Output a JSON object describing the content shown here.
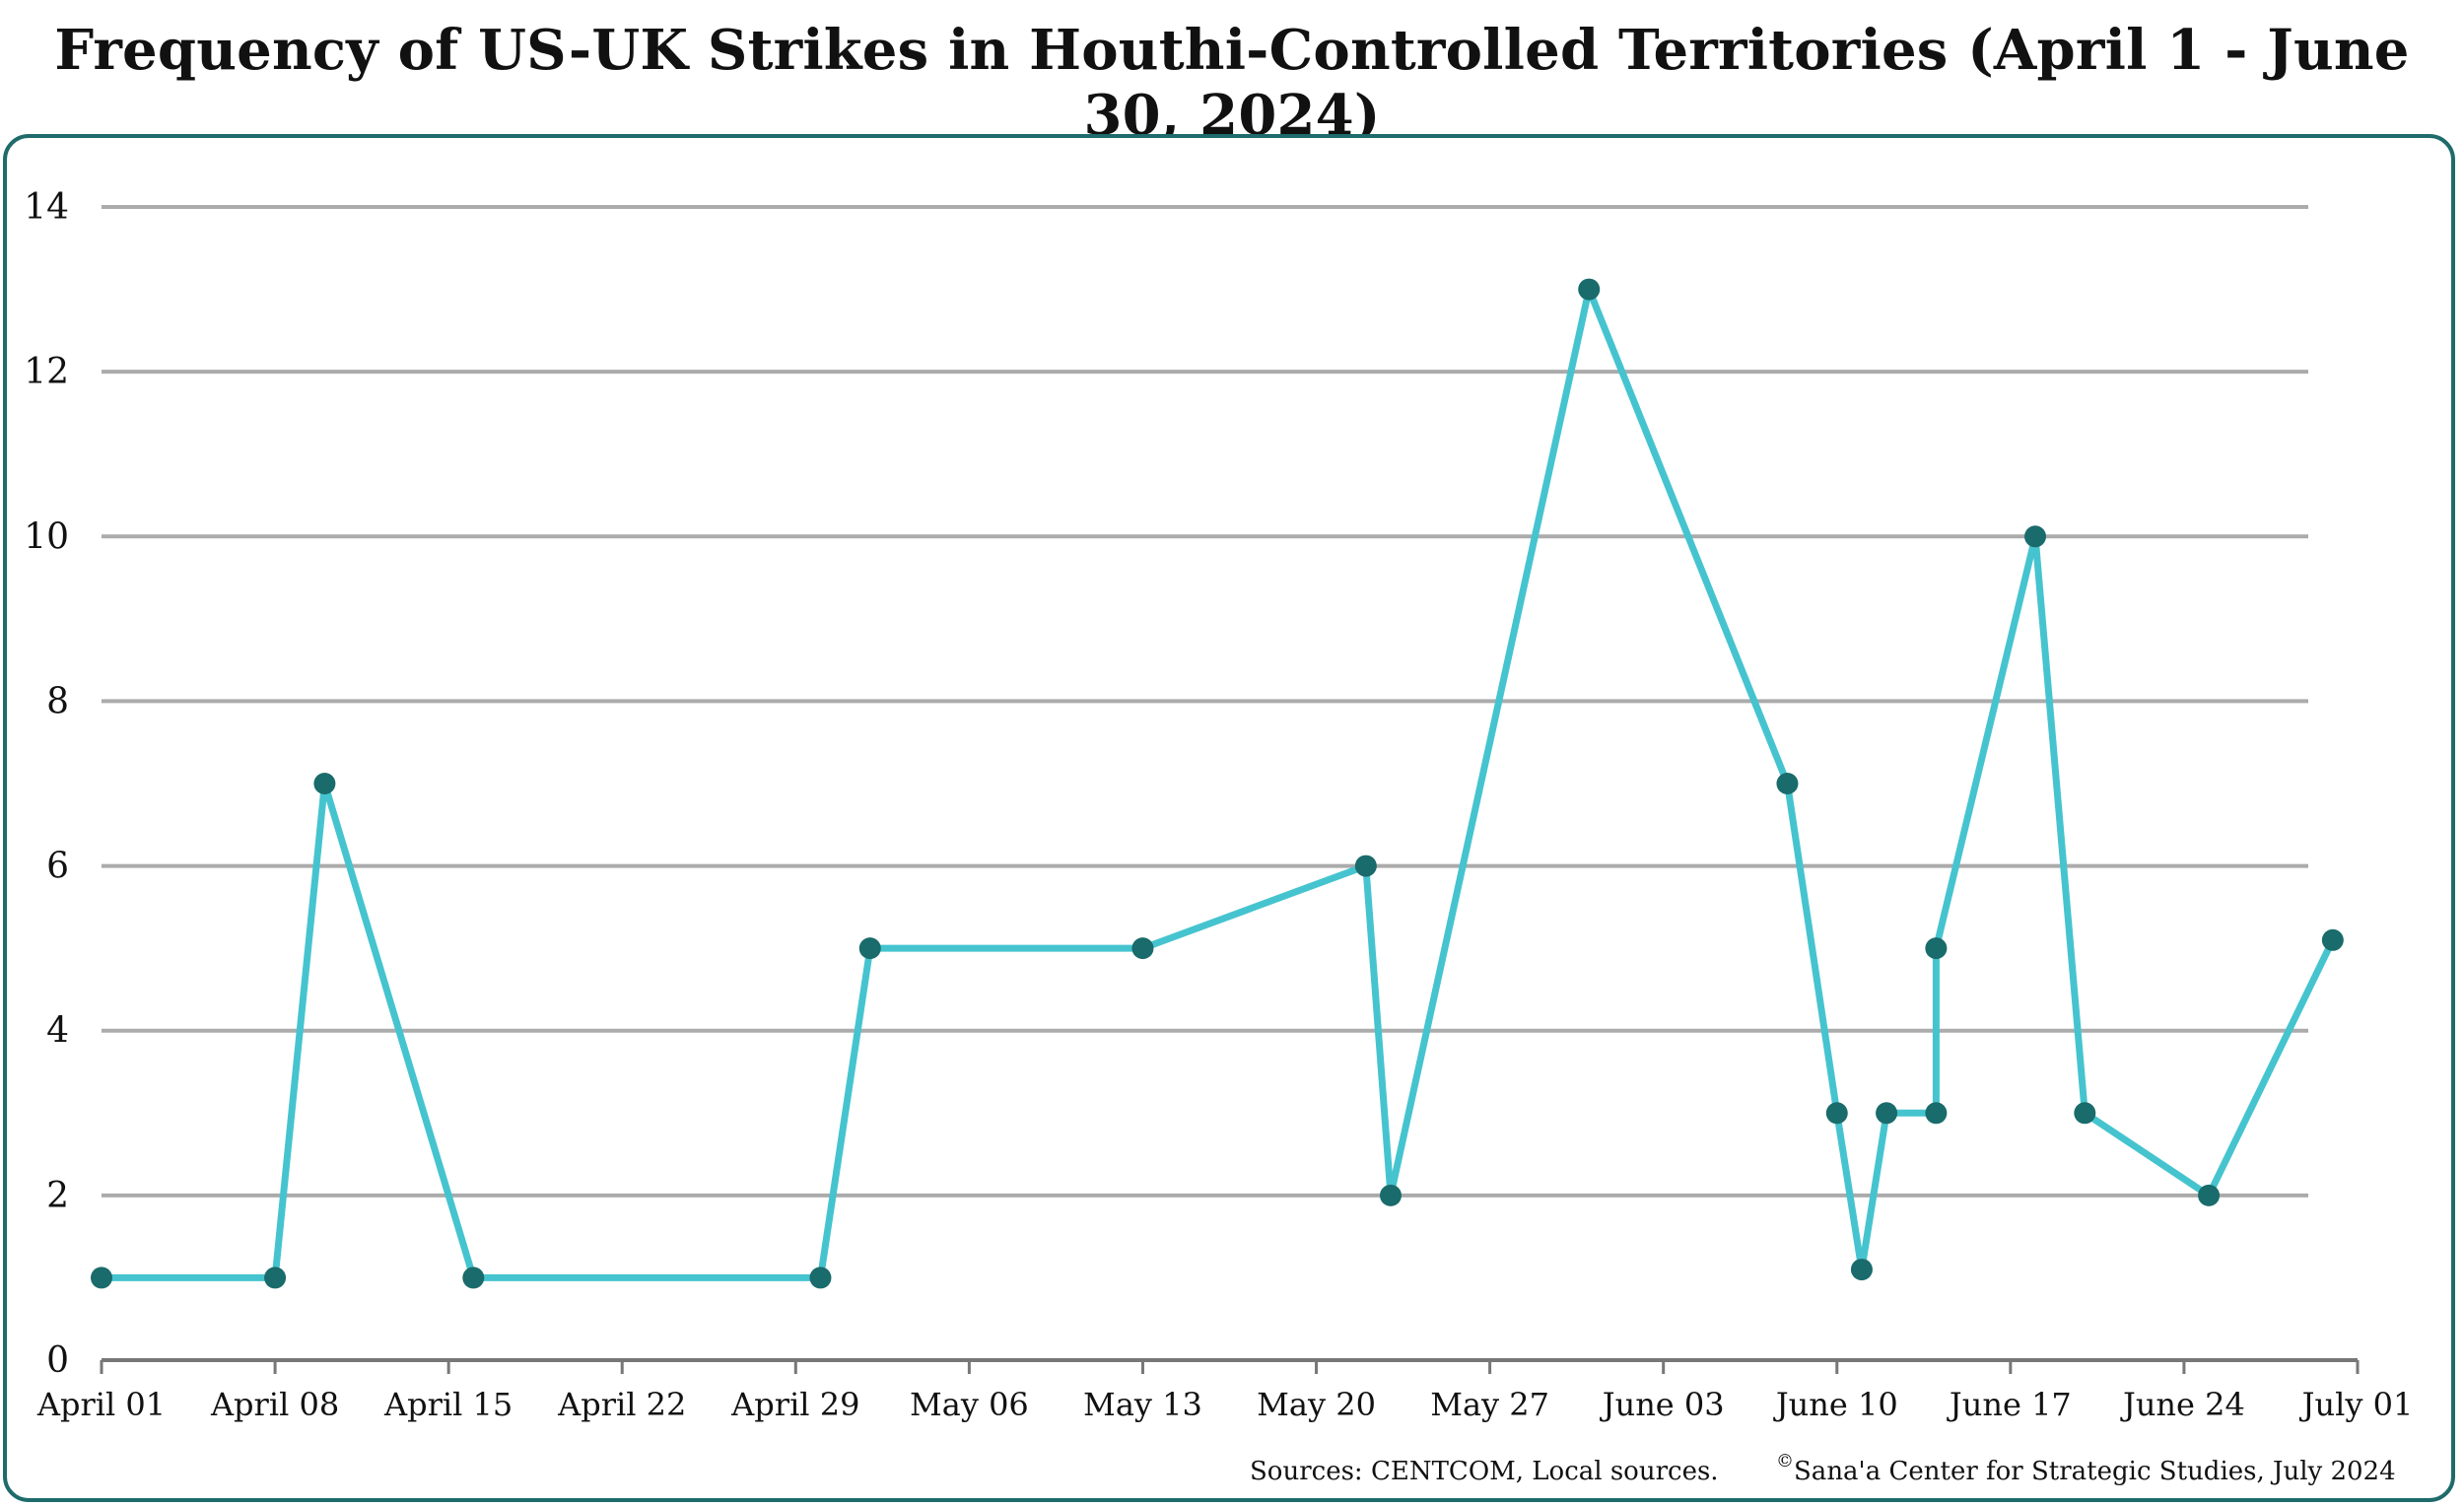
{
  "title": "Frequency of US-UK Strikes in Houthi-Controlled Territories (April 1 - June 30, 2024)",
  "footer": {
    "sources": "Sources: CENTCOM, Local sources.",
    "copyright_symbol": "©",
    "copyright": "Sana'a Center for Strategic Studies, July 2024"
  },
  "colors": {
    "line": "#45c4cf",
    "marker": "#1a6b6b",
    "grid": "#ababab",
    "axis": "#777777",
    "frame": "#1f6b6b"
  },
  "chart_data": {
    "type": "line",
    "title": "Frequency of US-UK Strikes in Houthi-Controlled Territories (April 1 - June 30, 2024)",
    "xlabel": "",
    "ylabel": "",
    "ylim": [
      0,
      14
    ],
    "yticks": [
      "0",
      "2",
      "4",
      "6",
      "8",
      "10",
      "12",
      "14"
    ],
    "xlim": [
      "2024-04-01",
      "2024-07-01"
    ],
    "xticks": [
      {
        "date": "2024-04-01",
        "label": "April 01"
      },
      {
        "date": "2024-04-08",
        "label": "April 08"
      },
      {
        "date": "2024-04-15",
        "label": "April 15"
      },
      {
        "date": "2024-04-22",
        "label": "April 22"
      },
      {
        "date": "2024-04-29",
        "label": "April 29"
      },
      {
        "date": "2024-05-06",
        "label": "May 06"
      },
      {
        "date": "2024-05-13",
        "label": "May 13"
      },
      {
        "date": "2024-05-20",
        "label": "May 20"
      },
      {
        "date": "2024-05-27",
        "label": "May 27"
      },
      {
        "date": "2024-06-03",
        "label": "June 03"
      },
      {
        "date": "2024-06-10",
        "label": "June 10"
      },
      {
        "date": "2024-06-17",
        "label": "June 17"
      },
      {
        "date": "2024-06-24",
        "label": "June 24"
      },
      {
        "date": "2024-07-01",
        "label": "July 01"
      }
    ],
    "grid": "horizontal",
    "legend": "none",
    "series": [
      {
        "points": [
          {
            "x": "2024-04-01",
            "y": 1
          },
          {
            "x": "2024-04-08",
            "y": 1
          },
          {
            "x": "2024-04-10",
            "y": 7
          },
          {
            "x": "2024-04-16",
            "y": 1
          },
          {
            "x": "2024-04-30",
            "y": 1
          },
          {
            "x": "2024-05-02",
            "y": 5
          },
          {
            "x": "2024-05-13",
            "y": 5
          },
          {
            "x": "2024-05-22",
            "y": 6
          },
          {
            "x": "2024-05-23",
            "y": 2
          },
          {
            "x": "2024-05-31",
            "y": 13
          },
          {
            "x": "2024-06-08",
            "y": 7
          },
          {
            "x": "2024-06-10",
            "y": 3
          },
          {
            "x": "2024-06-11",
            "y": 1.1
          },
          {
            "x": "2024-06-12",
            "y": 3
          },
          {
            "x": "2024-06-14",
            "y": 3
          },
          {
            "x": "2024-06-14",
            "y": 5
          },
          {
            "x": "2024-06-18",
            "y": 10
          },
          {
            "x": "2024-06-20",
            "y": 3
          },
          {
            "x": "2024-06-25",
            "y": 2
          },
          {
            "x": "2024-06-30",
            "y": 5.1
          }
        ]
      }
    ]
  }
}
